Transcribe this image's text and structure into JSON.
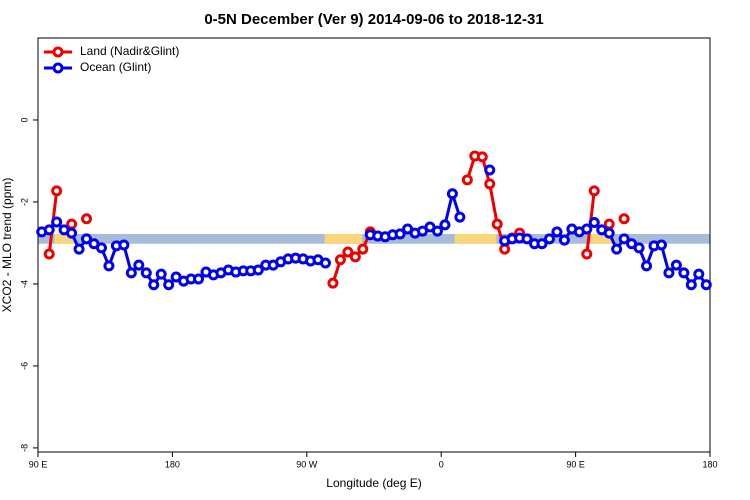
{
  "chart_data": {
    "type": "line",
    "title": "0-5N December (Ver 9)   2014-09-06 to 2018-12-31",
    "x_label": "Longitude (deg E)",
    "y_label": "XCO2 - MLO trend (ppm)",
    "xlim": [
      90,
      540
    ],
    "ylim": [
      -8.1,
      2
    ],
    "xticks": [
      {
        "value": 90,
        "label": "90 E"
      },
      180,
      {
        "value": 270,
        "label": "90 W"
      },
      {
        "value": 360,
        "label": "0"
      },
      {
        "value": 450,
        "label": "90 E"
      },
      {
        "value": 540,
        "label": "180"
      }
    ],
    "yticks": [
      -8,
      -6,
      -4,
      -2,
      0
    ],
    "legend": "top-left",
    "band": {
      "ylim": [
        -3.02,
        -2.78
      ],
      "color": "#a8bcd8",
      "land_color": "#f7d67c",
      "land_ranges": [
        [
          101,
          115
        ],
        [
          282,
          307
        ],
        [
          369,
          397
        ],
        [
          460,
          475
        ]
      ]
    },
    "x": [
      92.5,
      97.5,
      102.5,
      107.5,
      112.5,
      117.5,
      122.5,
      127.5,
      132.5,
      137.5,
      142.5,
      147.5,
      152.5,
      157.5,
      162.5,
      167.5,
      172.5,
      177.5,
      182.5,
      187.5,
      192.5,
      197.5,
      202.5,
      207.5,
      212.5,
      217.5,
      222.5,
      227.5,
      232.5,
      237.5,
      242.5,
      247.5,
      252.5,
      257.5,
      262.5,
      267.5,
      272.5,
      277.5,
      282.5,
      287.5,
      292.5,
      297.5,
      302.5,
      307.5,
      312.5,
      317.5,
      322.5,
      327.5,
      332.5,
      337.5,
      342.5,
      347.5,
      352.5,
      357.5,
      362.5,
      367.5,
      372.5,
      377.5,
      382.5,
      387.5,
      392.5,
      397.5,
      402.5,
      407.5,
      412.5,
      417.5,
      422.5,
      427.5,
      432.5,
      437.5,
      442.5,
      447.5,
      452.5,
      457.5,
      462.5,
      467.5,
      472.5,
      477.5,
      482.5,
      487.5,
      492.5,
      497.5,
      502.5,
      507.5,
      512.5,
      517.5,
      522.5,
      527.5,
      532.5,
      537.5
    ],
    "series": [
      {
        "name": "Land (Nadir&Glint)",
        "color": "#ee0000",
        "values": [
          null,
          -3.27,
          -1.73,
          null,
          -2.54,
          null,
          -2.41,
          null,
          null,
          null,
          null,
          null,
          null,
          null,
          null,
          null,
          null,
          null,
          null,
          null,
          null,
          null,
          null,
          null,
          null,
          null,
          null,
          null,
          null,
          null,
          null,
          null,
          null,
          null,
          null,
          null,
          null,
          null,
          null,
          -3.98,
          -3.41,
          -3.22,
          -3.34,
          -3.15,
          -2.73,
          null,
          null,
          null,
          null,
          null,
          null,
          null,
          null,
          null,
          null,
          null,
          null,
          -1.46,
          -0.88,
          -0.9,
          -1.56,
          -2.54,
          -3.15,
          -2.88,
          -2.76,
          null,
          null,
          null,
          null,
          null,
          null,
          null,
          null,
          -3.27,
          -1.73,
          null,
          -2.54,
          null,
          -2.41,
          null,
          null,
          null,
          null,
          null,
          null,
          null,
          null,
          null,
          null,
          null
        ]
      },
      {
        "name": "Ocean (Glint)",
        "color": "#0000ee",
        "values": [
          -2.73,
          -2.68,
          -2.49,
          -2.68,
          -2.76,
          -3.15,
          -2.9,
          -3.02,
          -3.12,
          -3.56,
          -3.07,
          -3.05,
          -3.73,
          -3.54,
          -3.73,
          -4.02,
          -3.76,
          -4.02,
          -3.83,
          -3.93,
          -3.88,
          -3.88,
          -3.71,
          -3.78,
          -3.73,
          -3.66,
          -3.71,
          -3.68,
          -3.68,
          -3.66,
          -3.54,
          -3.54,
          -3.46,
          -3.39,
          -3.37,
          -3.39,
          -3.44,
          -3.41,
          -3.49,
          null,
          null,
          null,
          null,
          null,
          -2.8,
          -2.83,
          -2.85,
          -2.8,
          -2.78,
          -2.66,
          -2.76,
          -2.71,
          -2.61,
          -2.71,
          -2.56,
          -1.8,
          -2.37,
          null,
          null,
          null,
          -1.22,
          null,
          -2.95,
          -2.9,
          -2.88,
          -2.9,
          -3.02,
          -3.02,
          -2.9,
          -2.73,
          -2.93,
          -2.66,
          -2.73,
          -2.66,
          -2.5,
          -2.68,
          -2.76,
          -3.15,
          -2.9,
          -3.02,
          -3.12,
          -3.56,
          -3.07,
          -3.05,
          -3.73,
          -3.54,
          -3.73,
          -4.02,
          -3.76,
          -4.02
        ]
      }
    ]
  }
}
